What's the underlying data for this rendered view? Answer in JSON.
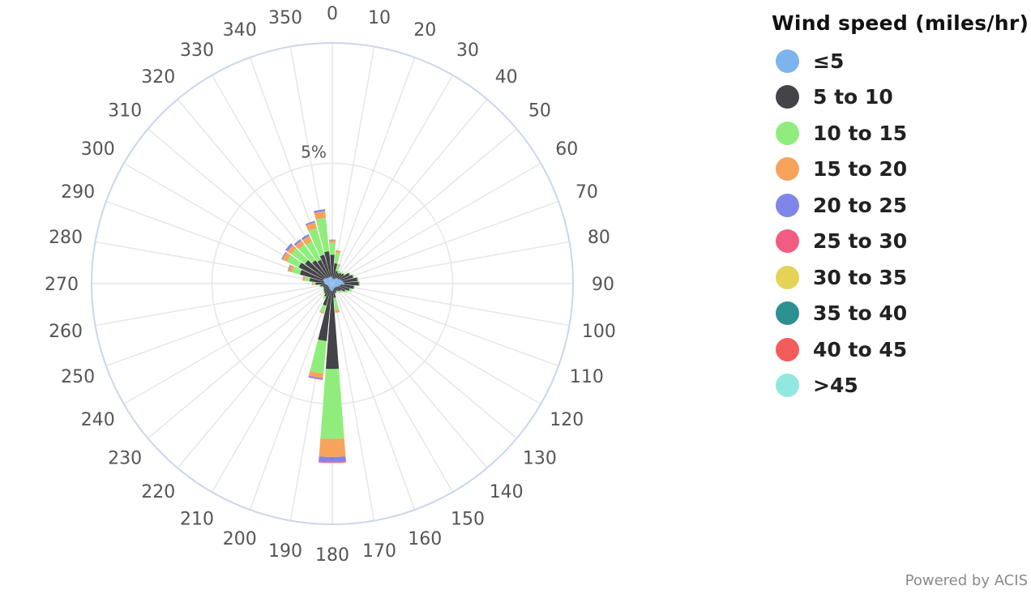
{
  "chart_data": {
    "type": "windrose",
    "title": "",
    "radial_unit": "%",
    "radial_tick_labels": [
      "5%"
    ],
    "directions": [
      0,
      10,
      20,
      30,
      40,
      50,
      60,
      70,
      80,
      90,
      100,
      110,
      120,
      130,
      140,
      150,
      160,
      170,
      180,
      190,
      200,
      210,
      220,
      230,
      240,
      250,
      260,
      270,
      280,
      290,
      300,
      310,
      320,
      330,
      340,
      350
    ],
    "legend": {
      "title": "Wind speed (miles/hr)",
      "placement": "right"
    },
    "series": [
      {
        "name": "≤5",
        "color": "#7cb5ec",
        "values": [
          0.25,
          0.2,
          0.2,
          0.25,
          0.3,
          0.3,
          0.35,
          0.4,
          0.45,
          0.5,
          0.35,
          0.3,
          0.25,
          0.2,
          0.2,
          0.2,
          0.2,
          0.25,
          0.3,
          0.3,
          0.25,
          0.25,
          0.2,
          0.2,
          0.2,
          0.2,
          0.25,
          0.3,
          0.35,
          0.4,
          0.4,
          0.35,
          0.3,
          0.3,
          0.3,
          0.3
        ]
      },
      {
        "name": "5 to 10",
        "color": "#434348",
        "values": [
          0.95,
          0.65,
          0.35,
          0.25,
          0.25,
          0.3,
          0.45,
          0.5,
          0.6,
          0.6,
          0.55,
          0.45,
          0.35,
          0.25,
          0.2,
          0.15,
          0.2,
          0.35,
          3.25,
          2.1,
          0.7,
          0.35,
          0.3,
          0.25,
          0.2,
          0.2,
          0.25,
          0.4,
          0.6,
          1.0,
          1.15,
          1.05,
          0.9,
          0.8,
          0.95,
          1.05
        ]
      },
      {
        "name": "10 to 15",
        "color": "#90ed7d",
        "values": [
          0.5,
          0.45,
          0.25,
          0.1,
          0.05,
          0.05,
          0.05,
          0.05,
          0.05,
          0.05,
          0.05,
          0.1,
          0.1,
          0.1,
          0.1,
          0.05,
          0.05,
          0.5,
          2.9,
          1.35,
          0.3,
          0.1,
          0.05,
          0.05,
          0.05,
          0.05,
          0.05,
          0.1,
          0.2,
          0.35,
          0.55,
          0.7,
          0.8,
          0.85,
          1.15,
          1.4
        ]
      },
      {
        "name": "15 to 20",
        "color": "#f7a35c",
        "values": [
          0.1,
          0.1,
          0.05,
          0.0,
          0.0,
          0.0,
          0.0,
          0.0,
          0.0,
          0.0,
          0.0,
          0.0,
          0.0,
          0.0,
          0.0,
          0.0,
          0.0,
          0.12,
          0.75,
          0.2,
          0.05,
          0.0,
          0.0,
          0.0,
          0.0,
          0.0,
          0.0,
          0.05,
          0.1,
          0.15,
          0.2,
          0.2,
          0.2,
          0.25,
          0.25,
          0.28
        ]
      },
      {
        "name": "20 to 25",
        "color": "#8085e9",
        "values": [
          0.03,
          0.0,
          0.0,
          0.0,
          0.0,
          0.0,
          0.0,
          0.0,
          0.0,
          0.0,
          0.0,
          0.0,
          0.0,
          0.0,
          0.0,
          0.0,
          0.0,
          0.0,
          0.2,
          0.05,
          0.0,
          0.0,
          0.0,
          0.0,
          0.0,
          0.0,
          0.0,
          0.0,
          0.0,
          0.03,
          0.05,
          0.1,
          0.08,
          0.08,
          0.06,
          0.08
        ]
      },
      {
        "name": "25 to 30",
        "color": "#f15c80",
        "values": [
          0,
          0,
          0,
          0,
          0,
          0,
          0,
          0,
          0,
          0,
          0,
          0,
          0,
          0,
          0,
          0,
          0,
          0,
          0.05,
          0.02,
          0,
          0,
          0,
          0,
          0,
          0,
          0,
          0,
          0,
          0,
          0,
          0,
          0,
          0,
          0,
          0
        ]
      },
      {
        "name": "30 to 35",
        "color": "#e4d354",
        "values": [
          0,
          0,
          0,
          0,
          0,
          0,
          0,
          0,
          0,
          0,
          0,
          0,
          0,
          0,
          0,
          0,
          0,
          0,
          0,
          0,
          0,
          0,
          0,
          0,
          0,
          0,
          0,
          0,
          0,
          0,
          0,
          0,
          0,
          0,
          0,
          0
        ]
      },
      {
        "name": "35 to 40",
        "color": "#2b908f",
        "values": [
          0,
          0,
          0,
          0,
          0,
          0,
          0,
          0,
          0,
          0,
          0,
          0,
          0,
          0,
          0,
          0,
          0,
          0,
          0,
          0,
          0,
          0,
          0,
          0,
          0,
          0,
          0,
          0,
          0,
          0,
          0,
          0,
          0,
          0,
          0,
          0
        ]
      },
      {
        "name": "40 to 45",
        "color": "#f45b5b",
        "values": [
          0,
          0,
          0,
          0,
          0,
          0,
          0,
          0,
          0,
          0,
          0,
          0,
          0,
          0,
          0,
          0,
          0,
          0,
          0,
          0,
          0,
          0,
          0,
          0,
          0,
          0,
          0,
          0,
          0,
          0,
          0,
          0,
          0,
          0,
          0,
          0
        ]
      },
      {
        "name": ">45",
        "color": "#91e8e1",
        "values": [
          0,
          0,
          0,
          0,
          0,
          0,
          0,
          0,
          0,
          0,
          0,
          0,
          0,
          0,
          0,
          0,
          0,
          0,
          0,
          0,
          0,
          0,
          0,
          0,
          0,
          0,
          0,
          0,
          0,
          0,
          0,
          0,
          0,
          0,
          0,
          0
        ]
      }
    ],
    "radial_max": 10,
    "grid": true
  },
  "credit": "Powered by ACIS"
}
